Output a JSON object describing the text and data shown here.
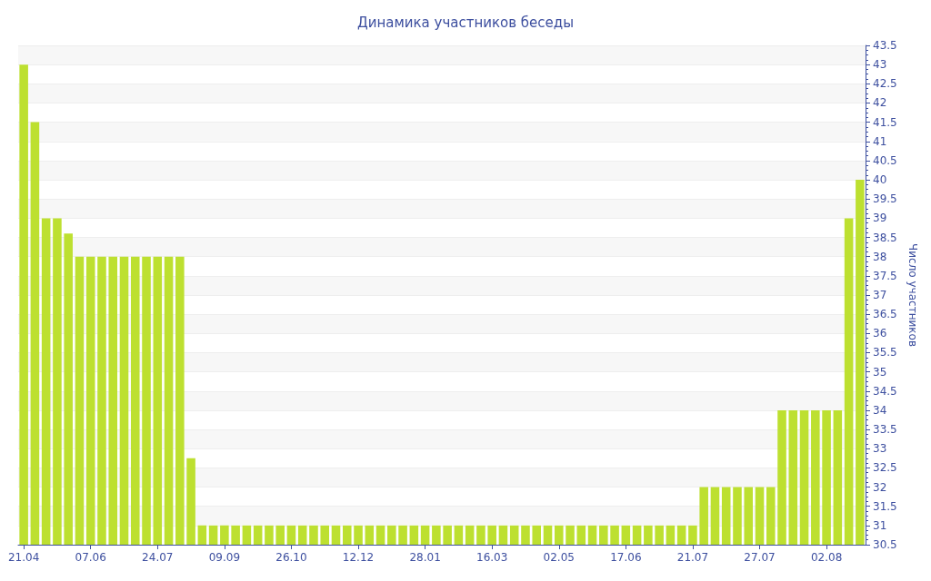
{
  "chart_data": {
    "type": "bar",
    "title": "Динамика участников беседы",
    "ylabel": "Число участников",
    "categories": [
      "21.04",
      null,
      null,
      null,
      null,
      null,
      "07.06",
      null,
      null,
      null,
      null,
      null,
      "24.07",
      null,
      null,
      null,
      null,
      null,
      "09.09",
      null,
      null,
      null,
      null,
      null,
      "26.10",
      null,
      null,
      null,
      null,
      null,
      "12.12",
      null,
      null,
      null,
      null,
      null,
      "28.01",
      null,
      null,
      null,
      null,
      null,
      "16.03",
      null,
      null,
      null,
      null,
      null,
      "02.05",
      null,
      null,
      null,
      null,
      null,
      "17.06",
      null,
      null,
      null,
      null,
      null,
      "21.07",
      null,
      null,
      null,
      null,
      null,
      "27.07",
      null,
      null,
      null,
      null,
      null,
      "02.08",
      null,
      null,
      null
    ],
    "values": [
      43,
      41.5,
      39,
      39,
      38.6,
      38,
      38,
      38,
      38,
      38,
      38,
      38,
      38,
      38,
      38,
      32.75,
      31,
      31,
      31,
      31,
      31,
      31,
      31,
      31,
      31,
      31,
      31,
      31,
      31,
      31,
      31,
      31,
      31,
      31,
      31,
      31,
      31,
      31,
      31,
      31,
      31,
      31,
      31,
      31,
      31,
      31,
      31,
      31,
      31,
      31,
      31,
      31,
      31,
      31,
      31,
      31,
      31,
      31,
      31,
      31,
      31,
      32,
      32,
      32,
      32,
      32,
      32,
      32,
      34,
      34,
      34,
      34,
      34,
      34,
      39,
      40
    ],
    "color": "#bde030",
    "ylim": [
      30.5,
      43.5
    ],
    "yticks": [
      30.5,
      31,
      31.5,
      32,
      32.5,
      33,
      33.5,
      34,
      34.5,
      35,
      35.5,
      36,
      36.5,
      37,
      37.5,
      38,
      38.5,
      39,
      39.5,
      40,
      40.5,
      41,
      41.5,
      42,
      42.5,
      43,
      43.5
    ],
    "grid": "y"
  }
}
